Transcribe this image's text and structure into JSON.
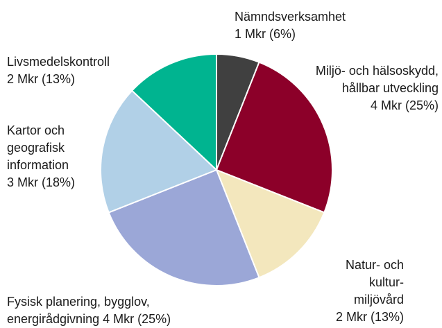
{
  "chart_data": {
    "type": "pie",
    "categories": [
      "Nämndsverksamhet",
      "Miljö- och hälsoskydd,\nhållbar utveckling",
      "Natur- och\nkultur-\nmiljövård",
      "Fysisk planering, bygglov,\nenergirådgivning",
      "Kartor och\ngeografisk\ninformation",
      "Livsmedelskontroll"
    ],
    "values": [
      6,
      25,
      13,
      25,
      18,
      13
    ],
    "value_labels": [
      "1 Mkr (6%)",
      "4 Mkr (25%)",
      "2 Mkr (13%)",
      "4 Mkr (25%)",
      "3 Mkr (18%)",
      "2 Mkr (13%)"
    ],
    "colors": [
      "#404040",
      "#8c0029",
      "#f3e7bd",
      "#9ba7d7",
      "#b1d0e7",
      "#00b490"
    ]
  }
}
